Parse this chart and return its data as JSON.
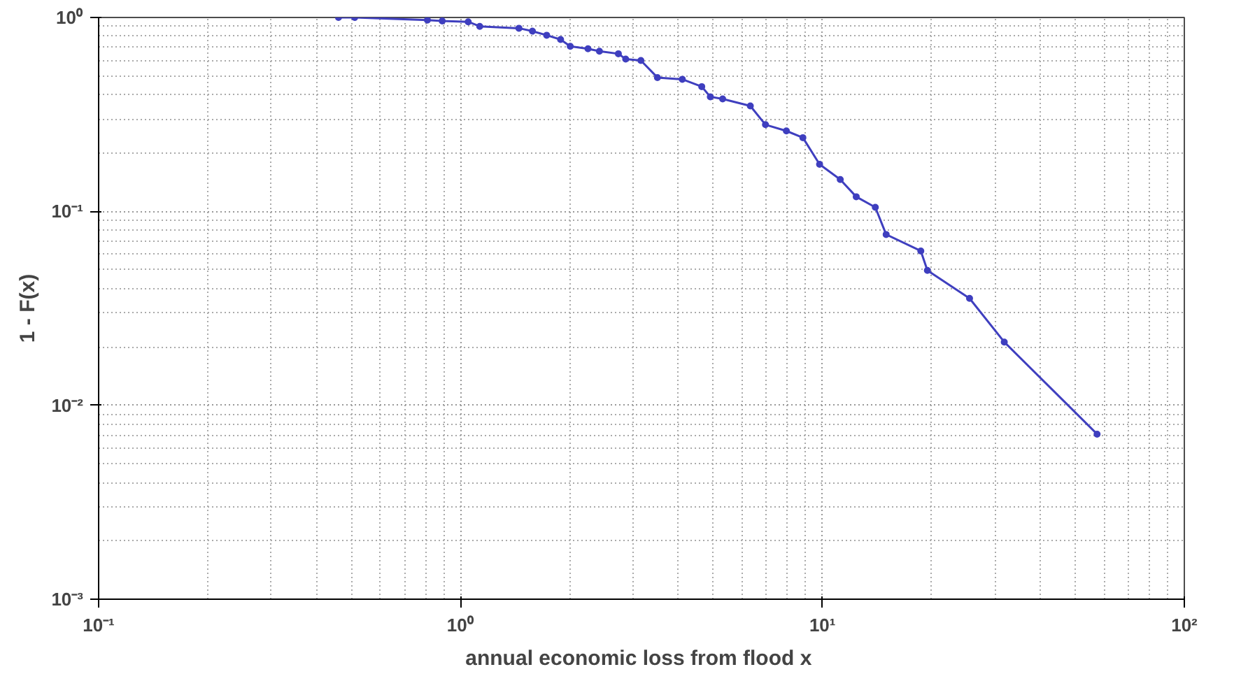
{
  "chart_data": {
    "type": "line",
    "xlabel": "annual economic loss from flood  x",
    "ylabel": "1 - F(x)",
    "log": "xy",
    "grid": true,
    "marker": "circle",
    "line_style": "solid",
    "xlim": [
      0.1,
      100
    ],
    "ylim": [
      0.001,
      1
    ],
    "xticks": [
      {
        "value": 0.1,
        "label": "10⁻¹"
      },
      {
        "value": 1,
        "label": "10⁰"
      },
      {
        "value": 10,
        "label": "10¹"
      },
      {
        "value": 100,
        "label": "10²"
      }
    ],
    "yticks": [
      {
        "value": 0.001,
        "label": "10⁻³"
      },
      {
        "value": 0.01,
        "label": "10⁻²"
      },
      {
        "value": 0.1,
        "label": "10⁻¹"
      },
      {
        "value": 1,
        "label": "10⁰"
      }
    ],
    "series": [
      {
        "color": "#3f3fbf",
        "x": [
          0.46,
          0.51,
          0.81,
          0.89,
          1.05,
          1.13,
          1.45,
          1.58,
          1.73,
          1.89,
          2.01,
          2.25,
          2.42,
          2.73,
          2.86,
          3.15,
          3.5,
          4.1,
          4.64,
          4.9,
          5.3,
          6.32,
          6.96,
          7.95,
          8.83,
          9.82,
          11.2,
          12.4,
          14.0,
          15.0,
          18.7,
          19.5,
          25.5,
          31.8,
          57.4
        ],
        "values": [
          1.0,
          1.0,
          0.97,
          0.96,
          0.95,
          0.9,
          0.88,
          0.85,
          0.81,
          0.77,
          0.71,
          0.69,
          0.67,
          0.65,
          0.61,
          0.6,
          0.49,
          0.48,
          0.44,
          0.39,
          0.38,
          0.35,
          0.28,
          0.26,
          0.24,
          0.175,
          0.146,
          0.119,
          0.105,
          0.076,
          0.0625,
          0.0496,
          0.0356,
          0.0212,
          0.0071
        ]
      }
    ]
  }
}
